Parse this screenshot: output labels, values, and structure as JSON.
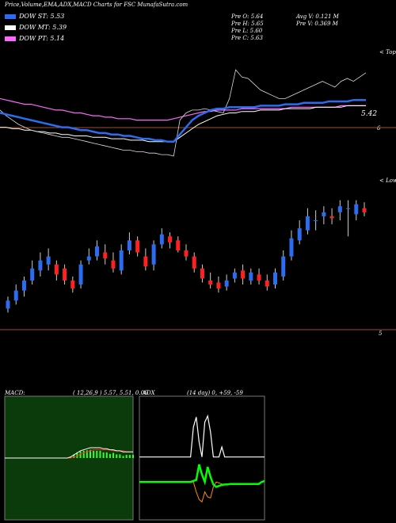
{
  "header": {
    "title": "Price,Volume,EMA,ADX,MACD Charts for FSC MunafaSutra.com"
  },
  "legend": [
    {
      "label": "DOW ST: 5.53",
      "color": "#2b6cf0"
    },
    {
      "label": "DOW MT: 5.39",
      "color": "#ffffff"
    },
    {
      "label": "DOW PT: 5.14",
      "color": "#ff66ff"
    }
  ],
  "stats": {
    "prev_open": "Pre O: 5.64",
    "prev_high": "Pre H: 5.65",
    "prev_low": "Pre L: 5.60",
    "prev_close": "Pre C: 5.63",
    "avg_volume": "Avg V: 0.121 M",
    "prev_volume": "Pre V: 0.369 M"
  },
  "colors": {
    "bull": "#2b6cf0",
    "bear": "#ff2020",
    "ema_short": "#2b6cf0",
    "ema_mid": "#ffffff",
    "ema_long": "#ff66ff",
    "macd_bg": "#0b3a0b",
    "adx_line": "#00ff00",
    "level_line": "#a0522d"
  },
  "chart_data": [
    {
      "type": "line",
      "panel": "ema",
      "title": "Price,Volume,EMA,ADX,MACD Charts for FSC",
      "top_label": "< Tope",
      "price_label": "5.42",
      "axis_mark": "6",
      "series": [
        {
          "name": "DOW ST",
          "values": [
            5.6,
            5.59,
            5.58,
            5.57,
            5.56,
            5.55,
            5.54,
            5.53,
            5.52,
            5.51,
            5.5,
            5.5,
            5.49,
            5.48,
            5.48,
            5.47,
            5.46,
            5.46,
            5.45,
            5.45,
            5.44,
            5.44,
            5.43,
            5.42,
            5.42,
            5.41,
            5.41,
            5.4,
            5.4,
            5.45,
            5.5,
            5.55,
            5.58,
            5.6,
            5.62,
            5.63,
            5.63,
            5.64,
            5.64,
            5.64,
            5.64,
            5.64,
            5.65,
            5.65,
            5.65,
            5.65,
            5.66,
            5.66,
            5.66,
            5.67,
            5.67,
            5.67,
            5.67,
            5.68,
            5.68,
            5.68,
            5.68,
            5.69,
            5.69,
            5.69
          ]
        },
        {
          "name": "DOW MT",
          "values": [
            5.5,
            5.5,
            5.49,
            5.49,
            5.48,
            5.48,
            5.47,
            5.47,
            5.46,
            5.46,
            5.45,
            5.45,
            5.44,
            5.44,
            5.44,
            5.43,
            5.43,
            5.43,
            5.42,
            5.42,
            5.42,
            5.41,
            5.41,
            5.41,
            5.4,
            5.4,
            5.4,
            5.4,
            5.4,
            5.43,
            5.46,
            5.49,
            5.52,
            5.54,
            5.56,
            5.58,
            5.59,
            5.6,
            5.6,
            5.61,
            5.61,
            5.61,
            5.62,
            5.62,
            5.62,
            5.62,
            5.63,
            5.63,
            5.63,
            5.63,
            5.63,
            5.64,
            5.64,
            5.64,
            5.64,
            5.64,
            5.65,
            5.65,
            5.65,
            5.65
          ]
        },
        {
          "name": "DOW PT",
          "values": [
            5.7,
            5.69,
            5.68,
            5.67,
            5.66,
            5.66,
            5.65,
            5.64,
            5.63,
            5.62,
            5.62,
            5.61,
            5.6,
            5.6,
            5.59,
            5.58,
            5.58,
            5.57,
            5.57,
            5.56,
            5.56,
            5.56,
            5.55,
            5.55,
            5.55,
            5.55,
            5.55,
            5.55,
            5.56,
            5.57,
            5.58,
            5.59,
            5.6,
            5.61,
            5.61,
            5.62,
            5.62,
            5.62,
            5.62,
            5.63,
            5.63,
            5.63,
            5.63,
            5.63,
            5.63,
            5.63,
            5.63,
            5.64,
            5.64,
            5.64,
            5.64,
            5.64,
            5.64,
            5.64,
            5.64,
            5.65,
            5.65,
            5.65,
            5.65,
            5.65
          ]
        }
      ],
      "close": [
        5.62,
        5.58,
        5.55,
        5.52,
        5.5,
        5.48,
        5.47,
        5.46,
        5.45,
        5.44,
        5.43,
        5.43,
        5.42,
        5.41,
        5.4,
        5.39,
        5.38,
        5.37,
        5.36,
        5.35,
        5.34,
        5.34,
        5.33,
        5.33,
        5.32,
        5.32,
        5.31,
        5.31,
        5.3,
        5.55,
        5.6,
        5.62,
        5.62,
        5.63,
        5.62,
        5.61,
        5.6,
        5.7,
        5.9,
        5.85,
        5.84,
        5.8,
        5.76,
        5.74,
        5.72,
        5.7,
        5.7,
        5.72,
        5.74,
        5.76,
        5.78,
        5.8,
        5.82,
        5.8,
        5.78,
        5.82,
        5.84,
        5.82,
        5.85,
        5.88
      ],
      "ylim": [
        5.2,
        6.0
      ]
    },
    {
      "type": "bar",
      "panel": "candles",
      "top_label": "< Lower",
      "axis_mark": "5",
      "open": [
        5.16,
        5.2,
        5.25,
        5.3,
        5.35,
        5.38,
        5.38,
        5.36,
        5.3,
        5.28,
        5.4,
        5.42,
        5.44,
        5.4,
        5.35,
        5.45,
        5.5,
        5.42,
        5.38,
        5.48,
        5.52,
        5.5,
        5.45,
        5.42,
        5.36,
        5.3,
        5.29,
        5.27,
        5.31,
        5.35,
        5.3,
        5.33,
        5.3,
        5.28,
        5.32,
        5.42,
        5.5,
        5.55,
        5.6,
        5.62,
        5.62,
        5.64,
        5.66,
        5.63,
        5.66
      ],
      "close": [
        5.2,
        5.25,
        5.3,
        5.36,
        5.4,
        5.42,
        5.33,
        5.3,
        5.26,
        5.38,
        5.42,
        5.47,
        5.41,
        5.36,
        5.45,
        5.5,
        5.44,
        5.37,
        5.48,
        5.53,
        5.49,
        5.45,
        5.42,
        5.36,
        5.31,
        5.28,
        5.26,
        5.3,
        5.34,
        5.31,
        5.34,
        5.3,
        5.27,
        5.34,
        5.42,
        5.51,
        5.56,
        5.62,
        5.6,
        5.64,
        5.61,
        5.67,
        5.66,
        5.68,
        5.64
      ],
      "high": [
        5.22,
        5.28,
        5.32,
        5.4,
        5.44,
        5.46,
        5.4,
        5.38,
        5.32,
        5.4,
        5.46,
        5.5,
        5.48,
        5.44,
        5.48,
        5.54,
        5.52,
        5.46,
        5.5,
        5.56,
        5.54,
        5.52,
        5.48,
        5.44,
        5.38,
        5.34,
        5.32,
        5.33,
        5.36,
        5.38,
        5.36,
        5.36,
        5.33,
        5.36,
        5.45,
        5.55,
        5.6,
        5.66,
        5.65,
        5.67,
        5.66,
        5.7,
        5.7,
        5.7,
        5.69
      ],
      "low": [
        5.14,
        5.18,
        5.22,
        5.28,
        5.32,
        5.35,
        5.3,
        5.28,
        5.24,
        5.26,
        5.38,
        5.4,
        5.38,
        5.34,
        5.33,
        5.43,
        5.42,
        5.35,
        5.35,
        5.46,
        5.46,
        5.44,
        5.4,
        5.34,
        5.29,
        5.26,
        5.24,
        5.25,
        5.29,
        5.28,
        5.28,
        5.28,
        5.25,
        5.26,
        5.3,
        5.4,
        5.48,
        5.53,
        5.55,
        5.58,
        5.58,
        5.6,
        5.52,
        5.6,
        5.62
      ],
      "ylim": [
        5.0,
        5.75
      ]
    },
    {
      "type": "area",
      "panel": "macd",
      "title": "MACD:",
      "params": "( 12,26,9 ) 5.57, 5.51, 0.06",
      "macd": [
        0.0,
        0.0,
        0.0,
        0.0,
        0.0,
        0.0,
        0.0,
        0.0,
        0.0,
        0.0,
        0.0,
        0.0,
        0.0,
        0.0,
        0.0,
        0.0,
        0.0,
        0.0,
        0.0,
        0.0,
        0.01,
        0.03,
        0.05,
        0.07,
        0.08,
        0.09,
        0.1,
        0.1,
        0.1,
        0.1,
        0.09,
        0.09,
        0.08,
        0.08,
        0.07,
        0.07,
        0.06,
        0.06,
        0.06,
        0.06
      ],
      "signal": [
        0.0,
        0.0,
        0.0,
        0.0,
        0.0,
        0.0,
        0.0,
        0.0,
        0.0,
        0.0,
        0.0,
        0.0,
        0.0,
        0.0,
        0.0,
        0.0,
        0.0,
        0.0,
        0.0,
        0.0,
        0.0,
        0.01,
        0.02,
        0.04,
        0.05,
        0.06,
        0.07,
        0.08,
        0.08,
        0.08,
        0.08,
        0.08,
        0.08,
        0.07,
        0.07,
        0.07,
        0.07,
        0.06,
        0.06,
        0.06
      ],
      "ylim": [
        -0.6,
        0.6
      ]
    },
    {
      "type": "line",
      "panel": "adx",
      "title": "ADX",
      "params": "(14 day) 0, +59, -59",
      "adx": [
        10,
        10,
        10,
        10,
        10,
        10,
        10,
        10,
        10,
        10,
        10,
        10,
        10,
        10,
        10,
        10,
        10,
        10,
        10,
        70,
        90,
        40,
        10,
        80,
        92,
        60,
        10,
        10,
        10,
        30,
        10,
        10,
        10,
        10,
        10,
        10,
        10,
        10,
        10,
        10,
        10,
        10,
        10,
        10,
        10
      ],
      "plus": [
        -40,
        -40,
        -40,
        -40,
        -40,
        -40,
        -40,
        -40,
        -40,
        -40,
        -40,
        -40,
        -40,
        -40,
        -40,
        -40,
        -40,
        -40,
        -40,
        -38,
        -36,
        -5,
        -25,
        -40,
        -10,
        -30,
        -45,
        -50,
        -48,
        -46,
        -45,
        -45,
        -44,
        -44,
        -44,
        -44,
        -44,
        -44,
        -44,
        -44,
        -44,
        -44,
        -44,
        -40,
        -38
      ],
      "minus": [
        -40,
        -40,
        -40,
        -40,
        -40,
        -40,
        -40,
        -40,
        -40,
        -40,
        -40,
        -40,
        -40,
        -40,
        -40,
        -40,
        -40,
        -40,
        -40,
        -40,
        -60,
        -75,
        -80,
        -60,
        -70,
        -72,
        -50,
        -40,
        -42,
        -44,
        -45,
        -45,
        -44,
        -44,
        -44,
        -44,
        -44,
        -44,
        -44,
        -44,
        -44,
        -44,
        -44,
        -40,
        -38
      ],
      "ylim": [
        -100,
        100
      ]
    }
  ]
}
